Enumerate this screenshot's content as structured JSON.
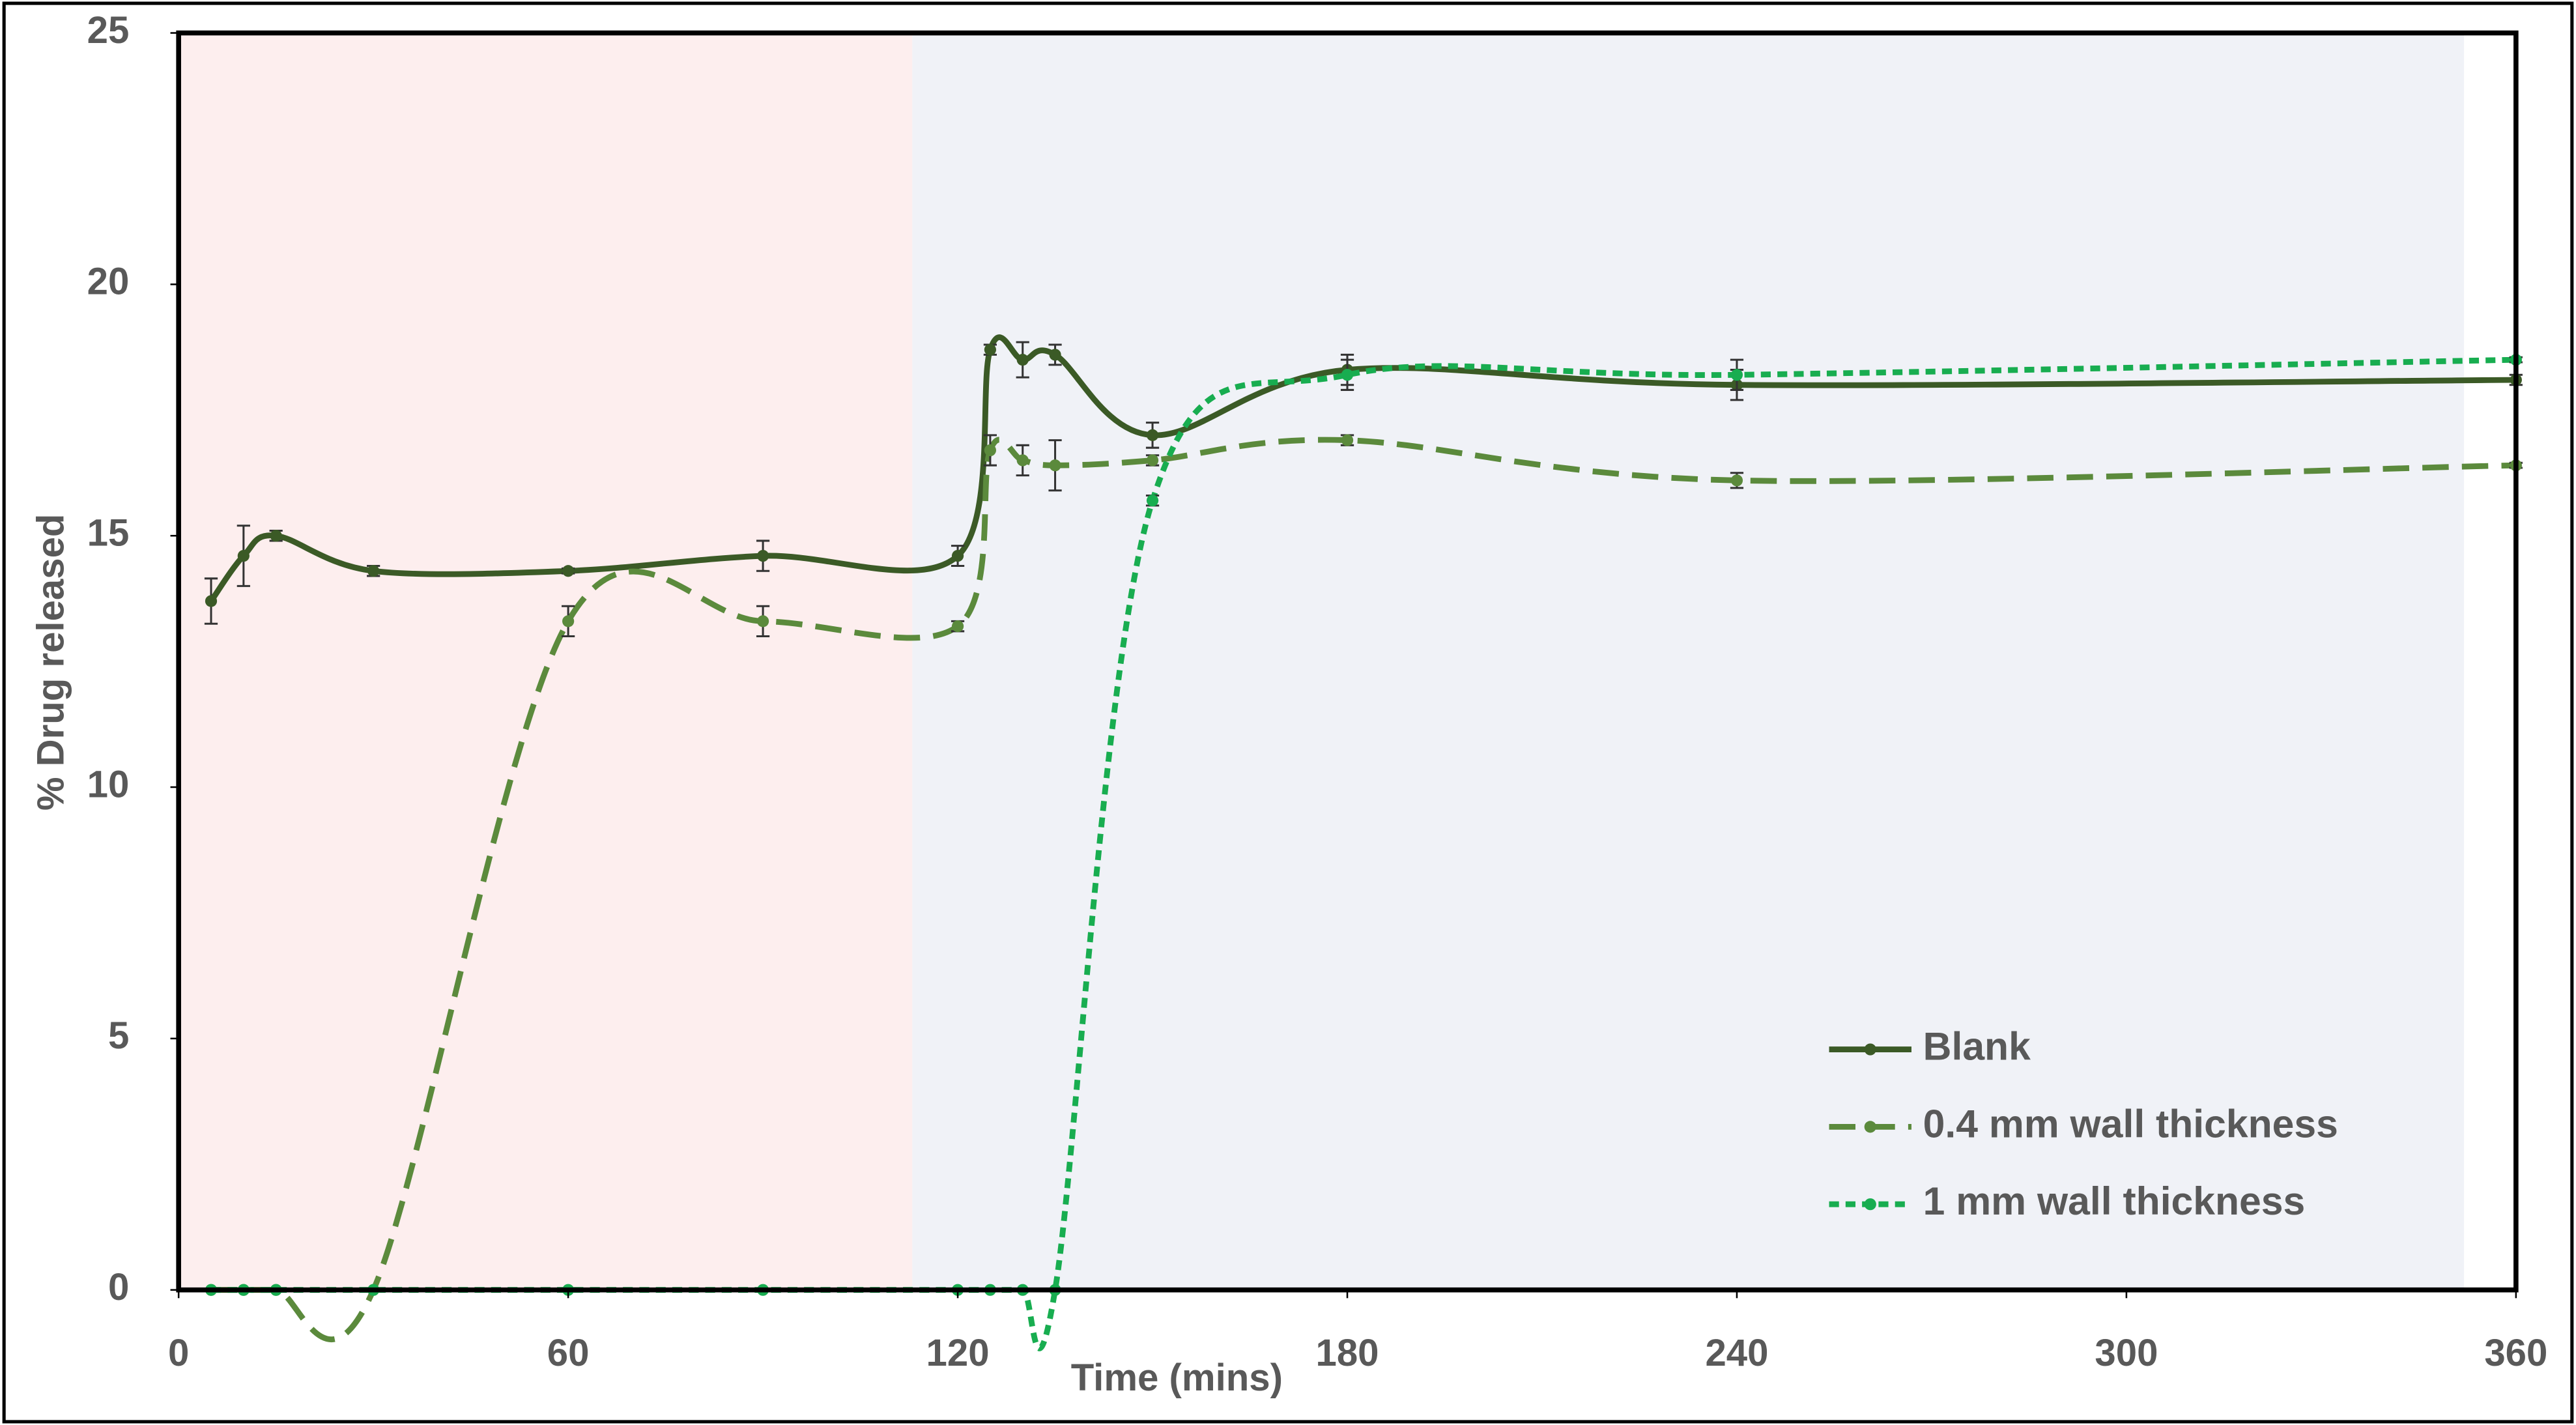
{
  "chart_data": {
    "type": "line",
    "x_label": "Time (mins)",
    "y_label": "% Drug released",
    "x": [
      5,
      10,
      15,
      30,
      60,
      90,
      120,
      125,
      130,
      135,
      150,
      180,
      240,
      360
    ],
    "series": [
      {
        "name": "Blank",
        "color": "#3b5a26",
        "line_style": "solid",
        "values": [
          13.7,
          14.6,
          15.0,
          14.3,
          14.3,
          14.6,
          14.6,
          18.7,
          18.5,
          18.6,
          17.0,
          18.3,
          18.0,
          18.1
        ],
        "errors": [
          0.45,
          0.6,
          0.1,
          0.1,
          0.05,
          0.3,
          0.2,
          0.1,
          0.35,
          0.2,
          0.25,
          0.3,
          0.3,
          0.1
        ]
      },
      {
        "name": "0.4 mm wall thickness",
        "color": "#5b8a3c",
        "line_style": "dashed",
        "values": [
          0,
          0,
          0,
          0,
          13.3,
          13.3,
          13.2,
          16.7,
          16.5,
          16.4,
          16.5,
          16.9,
          16.1,
          16.4
        ],
        "errors": [
          0,
          0,
          0,
          0,
          0.3,
          0.3,
          0.1,
          0.3,
          0.3,
          0.5,
          0.1,
          0.1,
          0.15,
          0.05
        ]
      },
      {
        "name": "1 mm wall thickness",
        "color": "#18ad50",
        "line_style": "dotted",
        "values": [
          0,
          0,
          0,
          0,
          0,
          0,
          0,
          0,
          0,
          0,
          15.7,
          18.2,
          18.2,
          18.5
        ],
        "errors": [
          0,
          0,
          0,
          0,
          0,
          0,
          0,
          0,
          0,
          0,
          0.1,
          0.3,
          0.3,
          0.05
        ]
      }
    ],
    "shaded_spans": [
      {
        "from": 0,
        "to": 113,
        "color": "#fdeeee"
      },
      {
        "from": 113,
        "to": 352,
        "color": "#f0f2f7"
      }
    ],
    "xlim": [
      0,
      360
    ],
    "xticks": [
      0,
      60,
      120,
      180,
      240,
      300,
      360
    ],
    "ylim": [
      0,
      25
    ],
    "yticks": [
      0,
      5,
      10,
      15,
      20,
      25
    ],
    "grid": false,
    "smooth": true,
    "legend": "lower right"
  }
}
